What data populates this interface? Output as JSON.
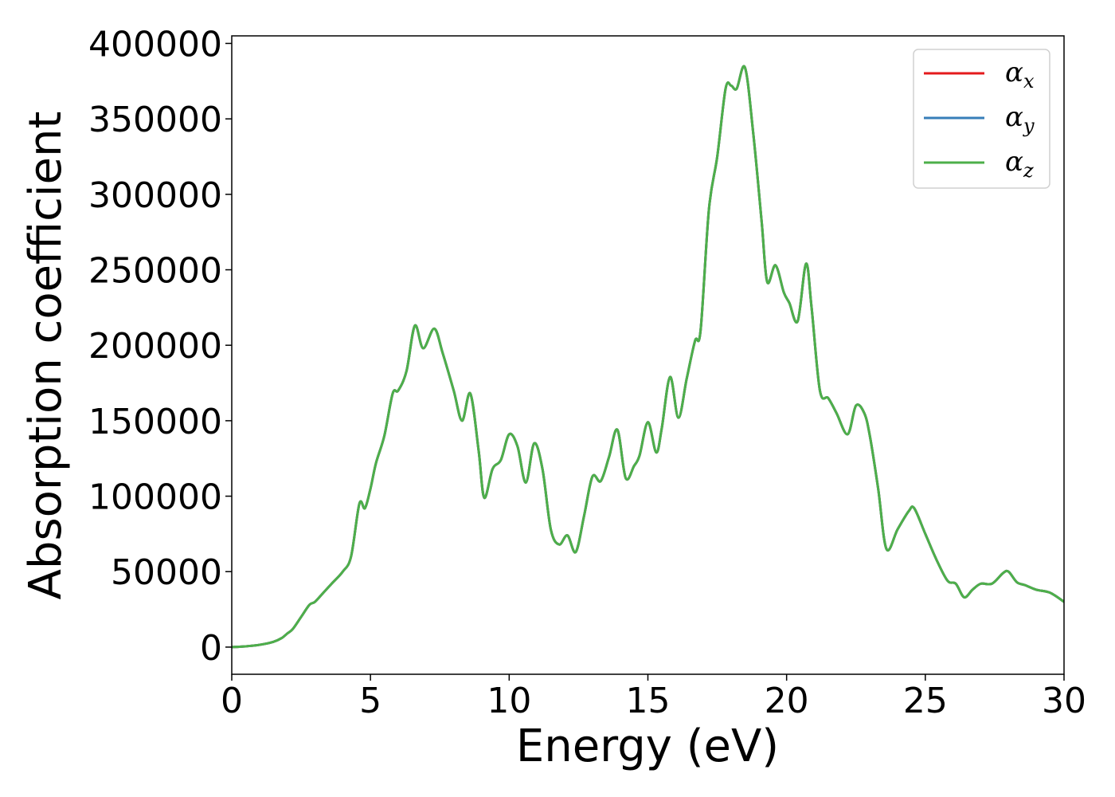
{
  "chart_data": {
    "type": "line",
    "title": "",
    "xlabel": "Energy (eV)",
    "ylabel": "Absorption coefficient",
    "xlim": [
      0,
      30
    ],
    "ylim": [
      -18000,
      405000
    ],
    "xticks": [
      0,
      5,
      10,
      15,
      20,
      25,
      30
    ],
    "xtick_labels": [
      "0",
      "5",
      "10",
      "15",
      "20",
      "25",
      "30"
    ],
    "yticks": [
      0,
      50000,
      100000,
      150000,
      200000,
      250000,
      300000,
      350000,
      400000
    ],
    "ytick_labels": [
      "0",
      "50000",
      "100000",
      "150000",
      "200000",
      "250000",
      "300000",
      "350000",
      "400000"
    ],
    "grid": false,
    "legend_position": "top-right",
    "x": [
      0,
      0.5,
      1,
      1.5,
      1.8,
      2,
      2.2,
      2.5,
      2.8,
      3,
      3.3,
      3.6,
      4,
      4.3,
      4.6,
      4.8,
      5,
      5.2,
      5.5,
      5.8,
      6,
      6.3,
      6.6,
      6.9,
      7.3,
      7.6,
      8,
      8.3,
      8.6,
      8.9,
      9.1,
      9.4,
      9.7,
      10,
      10.3,
      10.6,
      10.9,
      11.2,
      11.5,
      11.8,
      12.1,
      12.4,
      12.7,
      13,
      13.3,
      13.6,
      13.9,
      14.2,
      14.5,
      14.7,
      15,
      15.3,
      15.5,
      15.8,
      16.1,
      16.4,
      16.7,
      16.9,
      17.2,
      17.5,
      17.8,
      18,
      18.2,
      18.5,
      18.8,
      19.1,
      19.3,
      19.6,
      19.9,
      20.1,
      20.4,
      20.7,
      20.9,
      21.2,
      21.5,
      21.8,
      22.2,
      22.5,
      22.8,
      23,
      23.3,
      23.6,
      24,
      24.4,
      24.6,
      25,
      25.4,
      25.8,
      26.1,
      26.4,
      26.7,
      27,
      27.4,
      27.8,
      28,
      28.3,
      28.6,
      29,
      29.5,
      30
    ],
    "series": [
      {
        "name": "α_x",
        "sub": "x",
        "color": "#e41a1c",
        "values": [
          0,
          500,
          1500,
          3500,
          6000,
          9000,
          12000,
          20000,
          28000,
          30000,
          36000,
          42000,
          50000,
          60000,
          95000,
          92000,
          105000,
          122000,
          140000,
          168000,
          170000,
          183000,
          213000,
          198000,
          211000,
          195000,
          170000,
          150000,
          168000,
          130000,
          99000,
          118000,
          124000,
          141000,
          133000,
          109000,
          135000,
          118000,
          78000,
          68000,
          74000,
          63000,
          87000,
          113000,
          110000,
          126000,
          144000,
          112000,
          120000,
          127000,
          149000,
          129000,
          145000,
          179000,
          152000,
          178000,
          203000,
          210000,
          290000,
          325000,
          370000,
          372000,
          370000,
          384000,
          340000,
          282000,
          242000,
          253000,
          235000,
          228000,
          216000,
          254000,
          225000,
          170000,
          165000,
          155000,
          141000,
          160000,
          155000,
          140000,
          105000,
          65000,
          78000,
          90000,
          92000,
          75000,
          58000,
          44000,
          42000,
          33000,
          38000,
          42000,
          42000,
          49000,
          50000,
          43000,
          41000,
          38000,
          36000,
          30000
        ]
      },
      {
        "name": "α_y",
        "sub": "y",
        "color": "#377eb8",
        "values": [
          0,
          500,
          1500,
          3500,
          6000,
          9000,
          12000,
          20000,
          28000,
          30000,
          36000,
          42000,
          50000,
          60000,
          95000,
          92000,
          105000,
          122000,
          140000,
          168000,
          170000,
          183000,
          213000,
          198000,
          211000,
          195000,
          170000,
          150000,
          168000,
          130000,
          99000,
          118000,
          124000,
          141000,
          133000,
          109000,
          135000,
          118000,
          78000,
          68000,
          74000,
          63000,
          87000,
          113000,
          110000,
          126000,
          144000,
          112000,
          120000,
          127000,
          149000,
          129000,
          145000,
          179000,
          152000,
          178000,
          203000,
          210000,
          290000,
          325000,
          370000,
          372000,
          370000,
          384000,
          340000,
          282000,
          242000,
          253000,
          235000,
          228000,
          216000,
          254000,
          225000,
          170000,
          165000,
          155000,
          141000,
          160000,
          155000,
          140000,
          105000,
          65000,
          78000,
          90000,
          92000,
          75000,
          58000,
          44000,
          42000,
          33000,
          38000,
          42000,
          42000,
          49000,
          50000,
          43000,
          41000,
          38000,
          36000,
          30000
        ]
      },
      {
        "name": "α_z",
        "sub": "z",
        "color": "#4daf4a",
        "values": [
          0,
          500,
          1500,
          3500,
          6000,
          9000,
          12000,
          20000,
          28000,
          30000,
          36000,
          42000,
          50000,
          60000,
          95000,
          92000,
          105000,
          122000,
          140000,
          168000,
          170000,
          183000,
          213000,
          198000,
          211000,
          195000,
          170000,
          150000,
          168000,
          130000,
          99000,
          118000,
          124000,
          141000,
          133000,
          109000,
          135000,
          118000,
          78000,
          68000,
          74000,
          63000,
          87000,
          113000,
          110000,
          126000,
          144000,
          112000,
          120000,
          127000,
          149000,
          129000,
          145000,
          179000,
          152000,
          178000,
          203000,
          210000,
          290000,
          325000,
          370000,
          372000,
          370000,
          384000,
          340000,
          282000,
          242000,
          253000,
          235000,
          228000,
          216000,
          254000,
          225000,
          170000,
          165000,
          155000,
          141000,
          160000,
          155000,
          140000,
          105000,
          65000,
          78000,
          90000,
          92000,
          75000,
          58000,
          44000,
          42000,
          33000,
          38000,
          42000,
          42000,
          49000,
          50000,
          43000,
          41000,
          38000,
          36000,
          30000
        ]
      }
    ]
  }
}
